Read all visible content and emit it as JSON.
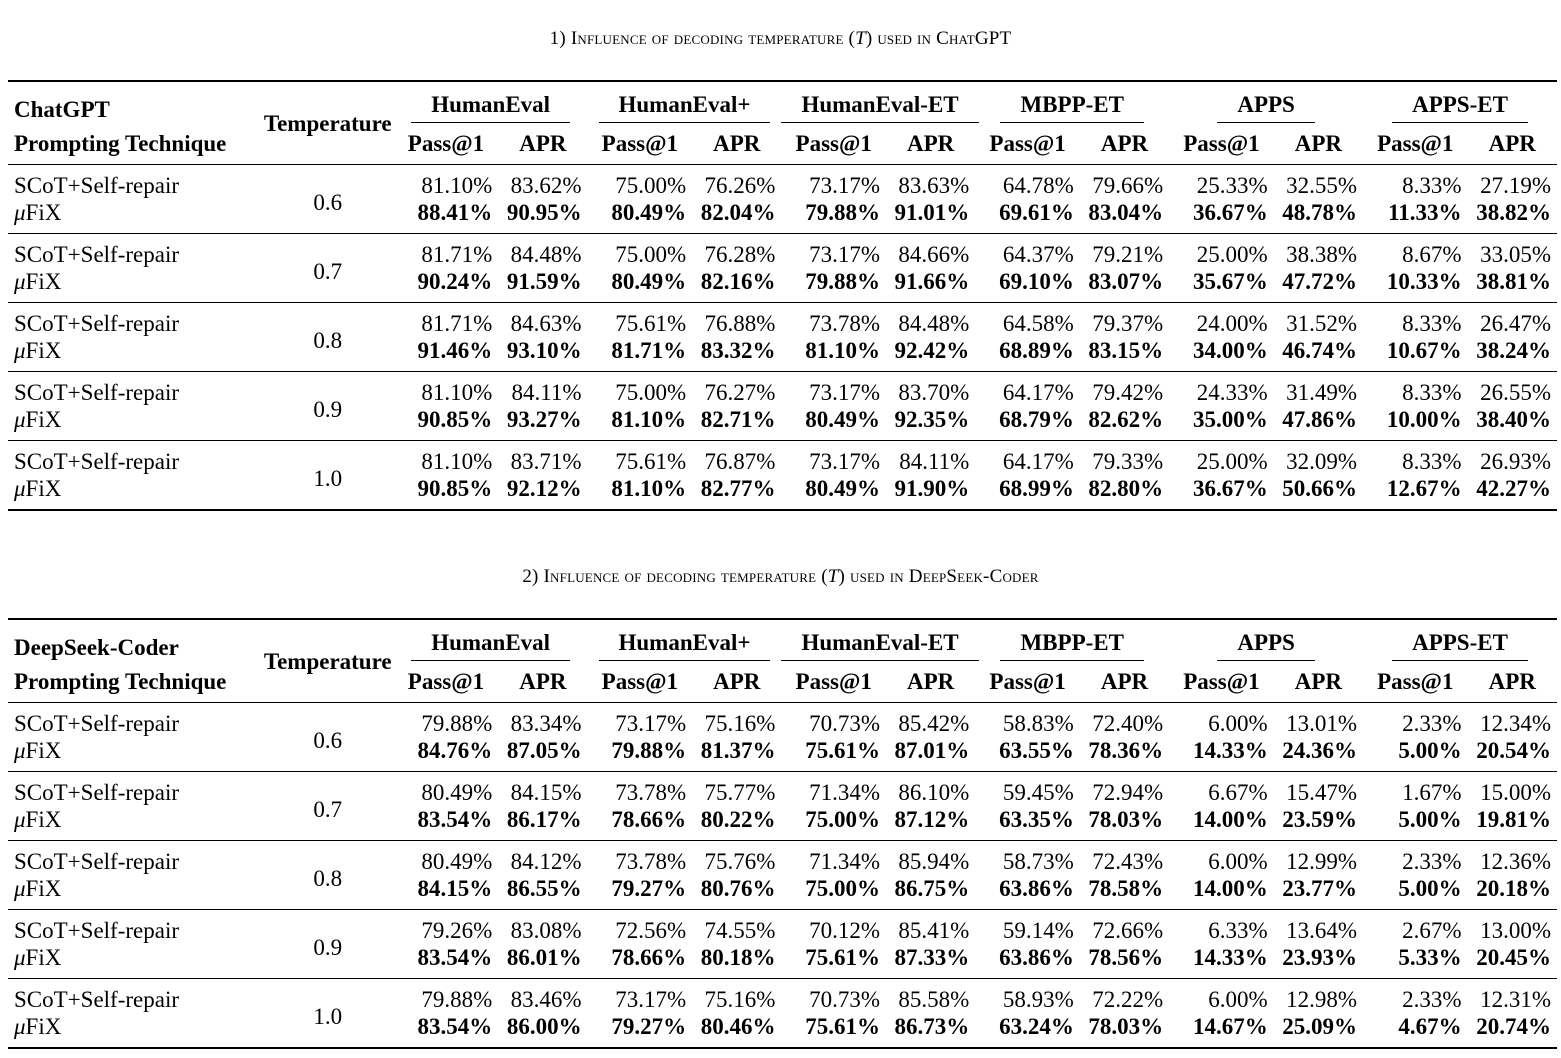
{
  "tables": [
    {
      "caption_num": "1)",
      "caption_pre": "Influence of decoding temperature (",
      "caption_var": "T",
      "caption_post": ") used in ChatGPT",
      "model": "ChatGPT",
      "technique_label": "Prompting Technique",
      "temperature_label": "Temperature",
      "benchmarks": [
        "HumanEval",
        "HumanEval+",
        "HumanEval-ET",
        "MBPP-ET",
        "APPS",
        "APPS-ET"
      ],
      "metrics": [
        "Pass@1",
        "APR"
      ],
      "baseline_name": "SCoT+Self-repair",
      "method_mu": "μ",
      "method_rest": "FiX",
      "rows": [
        {
          "temp": "0.6",
          "baseline": [
            "81.10%",
            "83.62%",
            "75.00%",
            "76.26%",
            "73.17%",
            "83.63%",
            "64.78%",
            "79.66%",
            "25.33%",
            "32.55%",
            "8.33%",
            "27.19%"
          ],
          "method": [
            "88.41%",
            "90.95%",
            "80.49%",
            "82.04%",
            "79.88%",
            "91.01%",
            "69.61%",
            "83.04%",
            "36.67%",
            "48.78%",
            "11.33%",
            "38.82%"
          ]
        },
        {
          "temp": "0.7",
          "baseline": [
            "81.71%",
            "84.48%",
            "75.00%",
            "76.28%",
            "73.17%",
            "84.66%",
            "64.37%",
            "79.21%",
            "25.00%",
            "38.38%",
            "8.67%",
            "33.05%"
          ],
          "method": [
            "90.24%",
            "91.59%",
            "80.49%",
            "82.16%",
            "79.88%",
            "91.66%",
            "69.10%",
            "83.07%",
            "35.67%",
            "47.72%",
            "10.33%",
            "38.81%"
          ]
        },
        {
          "temp": "0.8",
          "baseline": [
            "81.71%",
            "84.63%",
            "75.61%",
            "76.88%",
            "73.78%",
            "84.48%",
            "64.58%",
            "79.37%",
            "24.00%",
            "31.52%",
            "8.33%",
            "26.47%"
          ],
          "method": [
            "91.46%",
            "93.10%",
            "81.71%",
            "83.32%",
            "81.10%",
            "92.42%",
            "68.89%",
            "83.15%",
            "34.00%",
            "46.74%",
            "10.67%",
            "38.24%"
          ]
        },
        {
          "temp": "0.9",
          "baseline": [
            "81.10%",
            "84.11%",
            "75.00%",
            "76.27%",
            "73.17%",
            "83.70%",
            "64.17%",
            "79.42%",
            "24.33%",
            "31.49%",
            "8.33%",
            "26.55%"
          ],
          "method": [
            "90.85%",
            "93.27%",
            "81.10%",
            "82.71%",
            "80.49%",
            "92.35%",
            "68.79%",
            "82.62%",
            "35.00%",
            "47.86%",
            "10.00%",
            "38.40%"
          ]
        },
        {
          "temp": "1.0",
          "baseline": [
            "81.10%",
            "83.71%",
            "75.61%",
            "76.87%",
            "73.17%",
            "84.11%",
            "64.17%",
            "79.33%",
            "25.00%",
            "32.09%",
            "8.33%",
            "26.93%"
          ],
          "method": [
            "90.85%",
            "92.12%",
            "81.10%",
            "82.77%",
            "80.49%",
            "91.90%",
            "68.99%",
            "82.80%",
            "36.67%",
            "50.66%",
            "12.67%",
            "42.27%"
          ]
        }
      ]
    },
    {
      "caption_num": "2)",
      "caption_pre": "Influence of decoding temperature (",
      "caption_var": "T",
      "caption_post": ") used in DeepSeek-Coder",
      "model": "DeepSeek-Coder",
      "technique_label": "Prompting Technique",
      "temperature_label": "Temperature",
      "benchmarks": [
        "HumanEval",
        "HumanEval+",
        "HumanEval-ET",
        "MBPP-ET",
        "APPS",
        "APPS-ET"
      ],
      "metrics": [
        "Pass@1",
        "APR"
      ],
      "baseline_name": "SCoT+Self-repair",
      "method_mu": "μ",
      "method_rest": "FiX",
      "rows": [
        {
          "temp": "0.6",
          "baseline": [
            "79.88%",
            "83.34%",
            "73.17%",
            "75.16%",
            "70.73%",
            "85.42%",
            "58.83%",
            "72.40%",
            "6.00%",
            "13.01%",
            "2.33%",
            "12.34%"
          ],
          "method": [
            "84.76%",
            "87.05%",
            "79.88%",
            "81.37%",
            "75.61%",
            "87.01%",
            "63.55%",
            "78.36%",
            "14.33%",
            "24.36%",
            "5.00%",
            "20.54%"
          ]
        },
        {
          "temp": "0.7",
          "baseline": [
            "80.49%",
            "84.15%",
            "73.78%",
            "75.77%",
            "71.34%",
            "86.10%",
            "59.45%",
            "72.94%",
            "6.67%",
            "15.47%",
            "1.67%",
            "15.00%"
          ],
          "method": [
            "83.54%",
            "86.17%",
            "78.66%",
            "80.22%",
            "75.00%",
            "87.12%",
            "63.35%",
            "78.03%",
            "14.00%",
            "23.59%",
            "5.00%",
            "19.81%"
          ]
        },
        {
          "temp": "0.8",
          "baseline": [
            "80.49%",
            "84.12%",
            "73.78%",
            "75.76%",
            "71.34%",
            "85.94%",
            "58.73%",
            "72.43%",
            "6.00%",
            "12.99%",
            "2.33%",
            "12.36%"
          ],
          "method": [
            "84.15%",
            "86.55%",
            "79.27%",
            "80.76%",
            "75.00%",
            "86.75%",
            "63.86%",
            "78.58%",
            "14.00%",
            "23.77%",
            "5.00%",
            "20.18%"
          ]
        },
        {
          "temp": "0.9",
          "baseline": [
            "79.26%",
            "83.08%",
            "72.56%",
            "74.55%",
            "70.12%",
            "85.41%",
            "59.14%",
            "72.66%",
            "6.33%",
            "13.64%",
            "2.67%",
            "13.00%"
          ],
          "method": [
            "83.54%",
            "86.01%",
            "78.66%",
            "80.18%",
            "75.61%",
            "87.33%",
            "63.86%",
            "78.56%",
            "14.33%",
            "23.93%",
            "5.33%",
            "20.45%"
          ]
        },
        {
          "temp": "1.0",
          "baseline": [
            "79.88%",
            "83.46%",
            "73.17%",
            "75.16%",
            "70.73%",
            "85.58%",
            "58.93%",
            "72.22%",
            "6.00%",
            "12.98%",
            "2.33%",
            "12.31%"
          ],
          "method": [
            "83.54%",
            "86.00%",
            "79.27%",
            "80.46%",
            "75.61%",
            "86.73%",
            "63.24%",
            "78.03%",
            "14.67%",
            "25.09%",
            "4.67%",
            "20.74%"
          ]
        }
      ]
    }
  ]
}
